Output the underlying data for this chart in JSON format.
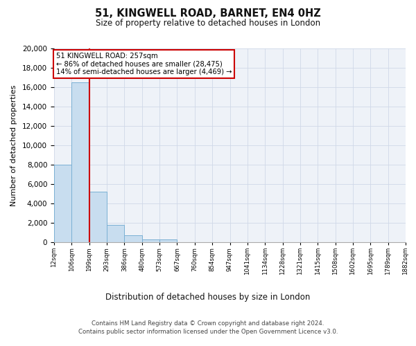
{
  "title": "51, KINGWELL ROAD, BARNET, EN4 0HZ",
  "subtitle": "Size of property relative to detached houses in London",
  "xlabel": "Distribution of detached houses by size in London",
  "ylabel": "Number of detached properties",
  "footnote1": "Contains HM Land Registry data © Crown copyright and database right 2024.",
  "footnote2": "Contains public sector information licensed under the Open Government Licence v3.0.",
  "bins": [
    "12sqm",
    "106sqm",
    "199sqm",
    "293sqm",
    "386sqm",
    "480sqm",
    "573sqm",
    "667sqm",
    "760sqm",
    "854sqm",
    "947sqm",
    "1041sqm",
    "1134sqm",
    "1228sqm",
    "1321sqm",
    "1415sqm",
    "1508sqm",
    "1602sqm",
    "1695sqm",
    "1789sqm",
    "1882sqm"
  ],
  "bar_values": [
    8000,
    16500,
    5200,
    1800,
    750,
    280,
    280,
    0,
    0,
    0,
    0,
    0,
    0,
    0,
    0,
    0,
    0,
    0,
    0,
    0
  ],
  "bar_color": "#c8ddef",
  "bar_edge_color": "#7ab0d4",
  "red_line_x": 2,
  "red_line_color": "#cc0000",
  "ylim": [
    0,
    20000
  ],
  "yticks": [
    0,
    2000,
    4000,
    6000,
    8000,
    10000,
    12000,
    14000,
    16000,
    18000,
    20000
  ],
  "annotation_title": "51 KINGWELL ROAD: 257sqm",
  "annotation_line1": "← 86% of detached houses are smaller (28,475)",
  "annotation_line2": "14% of semi-detached houses are larger (4,469) →",
  "annotation_box_color": "#cc0000",
  "background_color": "#eef2f8",
  "grid_color": "#d0d8e8"
}
